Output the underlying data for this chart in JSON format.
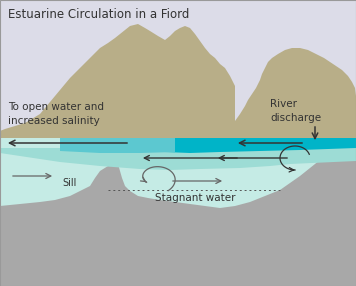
{
  "title": "Estuarine Circulation in a Fiord",
  "bg_color": "#e8e8ef",
  "sky_color": "#dcdce8",
  "mountain_color": "#b8ae88",
  "water_light_color": "#c5ebe5",
  "water_mid_color": "#9ddcd5",
  "river_color": "#00b4c8",
  "river_light_color": "#5cc8d0",
  "seabed_color": "#a8a8a8",
  "arrow_color": "#333333",
  "arrow_mid_color": "#666666",
  "text_color": "#333333",
  "label_open_water": "To open water and\nincreased salinity",
  "label_river": "River\ndischarge",
  "label_sill": "Sill",
  "label_stagnant": "Stagnant water",
  "title_fontsize": 8.5,
  "label_fontsize": 7.5
}
